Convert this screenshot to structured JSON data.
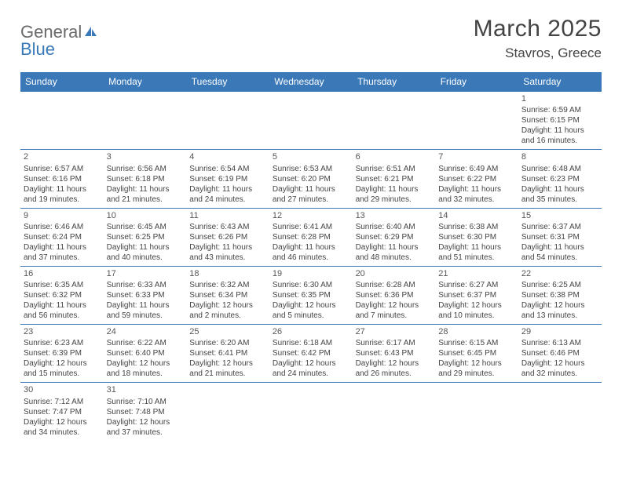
{
  "logo": {
    "word1": "General",
    "word2": "Blue"
  },
  "title": "March 2025",
  "location": "Stavros, Greece",
  "colors": {
    "accent": "#3a78b8",
    "text": "#444444",
    "bg": "#ffffff"
  },
  "weekdays": [
    "Sunday",
    "Monday",
    "Tuesday",
    "Wednesday",
    "Thursday",
    "Friday",
    "Saturday"
  ],
  "grid": {
    "rows": 6,
    "cols": 7,
    "first_weekday_index": 6,
    "days_in_month": 31
  },
  "days": {
    "1": {
      "sunrise": "Sunrise: 6:59 AM",
      "sunset": "Sunset: 6:15 PM",
      "daylight": "Daylight: 11 hours and 16 minutes."
    },
    "2": {
      "sunrise": "Sunrise: 6:57 AM",
      "sunset": "Sunset: 6:16 PM",
      "daylight": "Daylight: 11 hours and 19 minutes."
    },
    "3": {
      "sunrise": "Sunrise: 6:56 AM",
      "sunset": "Sunset: 6:18 PM",
      "daylight": "Daylight: 11 hours and 21 minutes."
    },
    "4": {
      "sunrise": "Sunrise: 6:54 AM",
      "sunset": "Sunset: 6:19 PM",
      "daylight": "Daylight: 11 hours and 24 minutes."
    },
    "5": {
      "sunrise": "Sunrise: 6:53 AM",
      "sunset": "Sunset: 6:20 PM",
      "daylight": "Daylight: 11 hours and 27 minutes."
    },
    "6": {
      "sunrise": "Sunrise: 6:51 AM",
      "sunset": "Sunset: 6:21 PM",
      "daylight": "Daylight: 11 hours and 29 minutes."
    },
    "7": {
      "sunrise": "Sunrise: 6:49 AM",
      "sunset": "Sunset: 6:22 PM",
      "daylight": "Daylight: 11 hours and 32 minutes."
    },
    "8": {
      "sunrise": "Sunrise: 6:48 AM",
      "sunset": "Sunset: 6:23 PM",
      "daylight": "Daylight: 11 hours and 35 minutes."
    },
    "9": {
      "sunrise": "Sunrise: 6:46 AM",
      "sunset": "Sunset: 6:24 PM",
      "daylight": "Daylight: 11 hours and 37 minutes."
    },
    "10": {
      "sunrise": "Sunrise: 6:45 AM",
      "sunset": "Sunset: 6:25 PM",
      "daylight": "Daylight: 11 hours and 40 minutes."
    },
    "11": {
      "sunrise": "Sunrise: 6:43 AM",
      "sunset": "Sunset: 6:26 PM",
      "daylight": "Daylight: 11 hours and 43 minutes."
    },
    "12": {
      "sunrise": "Sunrise: 6:41 AM",
      "sunset": "Sunset: 6:28 PM",
      "daylight": "Daylight: 11 hours and 46 minutes."
    },
    "13": {
      "sunrise": "Sunrise: 6:40 AM",
      "sunset": "Sunset: 6:29 PM",
      "daylight": "Daylight: 11 hours and 48 minutes."
    },
    "14": {
      "sunrise": "Sunrise: 6:38 AM",
      "sunset": "Sunset: 6:30 PM",
      "daylight": "Daylight: 11 hours and 51 minutes."
    },
    "15": {
      "sunrise": "Sunrise: 6:37 AM",
      "sunset": "Sunset: 6:31 PM",
      "daylight": "Daylight: 11 hours and 54 minutes."
    },
    "16": {
      "sunrise": "Sunrise: 6:35 AM",
      "sunset": "Sunset: 6:32 PM",
      "daylight": "Daylight: 11 hours and 56 minutes."
    },
    "17": {
      "sunrise": "Sunrise: 6:33 AM",
      "sunset": "Sunset: 6:33 PM",
      "daylight": "Daylight: 11 hours and 59 minutes."
    },
    "18": {
      "sunrise": "Sunrise: 6:32 AM",
      "sunset": "Sunset: 6:34 PM",
      "daylight": "Daylight: 12 hours and 2 minutes."
    },
    "19": {
      "sunrise": "Sunrise: 6:30 AM",
      "sunset": "Sunset: 6:35 PM",
      "daylight": "Daylight: 12 hours and 5 minutes."
    },
    "20": {
      "sunrise": "Sunrise: 6:28 AM",
      "sunset": "Sunset: 6:36 PM",
      "daylight": "Daylight: 12 hours and 7 minutes."
    },
    "21": {
      "sunrise": "Sunrise: 6:27 AM",
      "sunset": "Sunset: 6:37 PM",
      "daylight": "Daylight: 12 hours and 10 minutes."
    },
    "22": {
      "sunrise": "Sunrise: 6:25 AM",
      "sunset": "Sunset: 6:38 PM",
      "daylight": "Daylight: 12 hours and 13 minutes."
    },
    "23": {
      "sunrise": "Sunrise: 6:23 AM",
      "sunset": "Sunset: 6:39 PM",
      "daylight": "Daylight: 12 hours and 15 minutes."
    },
    "24": {
      "sunrise": "Sunrise: 6:22 AM",
      "sunset": "Sunset: 6:40 PM",
      "daylight": "Daylight: 12 hours and 18 minutes."
    },
    "25": {
      "sunrise": "Sunrise: 6:20 AM",
      "sunset": "Sunset: 6:41 PM",
      "daylight": "Daylight: 12 hours and 21 minutes."
    },
    "26": {
      "sunrise": "Sunrise: 6:18 AM",
      "sunset": "Sunset: 6:42 PM",
      "daylight": "Daylight: 12 hours and 24 minutes."
    },
    "27": {
      "sunrise": "Sunrise: 6:17 AM",
      "sunset": "Sunset: 6:43 PM",
      "daylight": "Daylight: 12 hours and 26 minutes."
    },
    "28": {
      "sunrise": "Sunrise: 6:15 AM",
      "sunset": "Sunset: 6:45 PM",
      "daylight": "Daylight: 12 hours and 29 minutes."
    },
    "29": {
      "sunrise": "Sunrise: 6:13 AM",
      "sunset": "Sunset: 6:46 PM",
      "daylight": "Daylight: 12 hours and 32 minutes."
    },
    "30": {
      "sunrise": "Sunrise: 7:12 AM",
      "sunset": "Sunset: 7:47 PM",
      "daylight": "Daylight: 12 hours and 34 minutes."
    },
    "31": {
      "sunrise": "Sunrise: 7:10 AM",
      "sunset": "Sunset: 7:48 PM",
      "daylight": "Daylight: 12 hours and 37 minutes."
    }
  }
}
